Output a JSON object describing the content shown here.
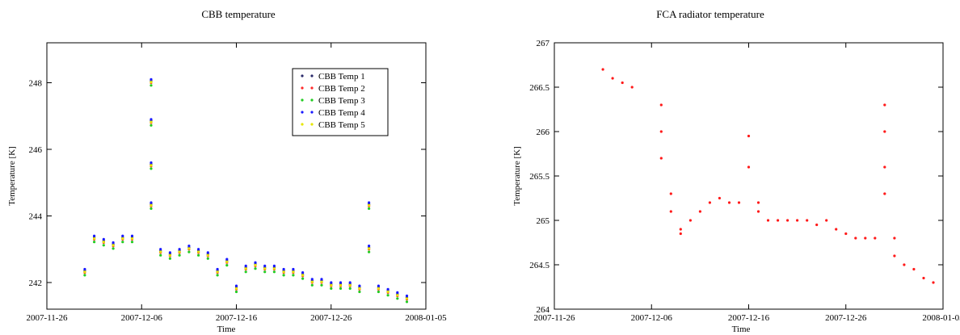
{
  "chart_data": [
    {
      "type": "scatter",
      "title": "CBB temperature",
      "xlabel": "Time",
      "ylabel": "Temperature [K]",
      "x_tick_labels": [
        "2007-11-26",
        "2007-12-06",
        "2007-12-16",
        "2007-12-26",
        "2008-01-05"
      ],
      "y_tick_labels": [
        "242",
        "244",
        "246",
        "248"
      ],
      "xlim": [
        "2007-11-26",
        "2008-01-05"
      ],
      "ylim": [
        241.2,
        249.2
      ],
      "legend_position": "top-right",
      "series": [
        {
          "name": "CBB Temp 1",
          "color": "#2b2b6b",
          "y_offset": 0.05
        },
        {
          "name": "CBB Temp 2",
          "color": "#ff2a2a",
          "y_offset": 0.0
        },
        {
          "name": "CBB Temp 3",
          "color": "#22cc22",
          "y_offset": -0.08
        },
        {
          "name": "CBB Temp 4",
          "color": "#1a1aff",
          "y_offset": 0.1
        },
        {
          "name": "CBB Temp 5",
          "color": "#e6e600",
          "y_offset": 0.02
        }
      ],
      "base_points": [
        [
          "2007-11-30",
          242.3
        ],
        [
          "2007-12-01",
          243.3
        ],
        [
          "2007-12-02",
          243.2
        ],
        [
          "2007-12-03",
          243.1
        ],
        [
          "2007-12-04",
          243.3
        ],
        [
          "2007-12-05",
          243.3
        ],
        [
          "2007-12-07",
          248.0
        ],
        [
          "2007-12-07",
          246.8
        ],
        [
          "2007-12-07",
          245.5
        ],
        [
          "2007-12-07",
          244.3
        ],
        [
          "2007-12-08",
          242.9
        ],
        [
          "2007-12-09",
          242.8
        ],
        [
          "2007-12-10",
          242.9
        ],
        [
          "2007-12-11",
          243.0
        ],
        [
          "2007-12-12",
          242.9
        ],
        [
          "2007-12-13",
          242.8
        ],
        [
          "2007-12-14",
          242.3
        ],
        [
          "2007-12-15",
          242.6
        ],
        [
          "2007-12-16",
          241.8
        ],
        [
          "2007-12-17",
          242.4
        ],
        [
          "2007-12-18",
          242.5
        ],
        [
          "2007-12-19",
          242.4
        ],
        [
          "2007-12-20",
          242.4
        ],
        [
          "2007-12-21",
          242.3
        ],
        [
          "2007-12-22",
          242.3
        ],
        [
          "2007-12-23",
          242.2
        ],
        [
          "2007-12-24",
          242.0
        ],
        [
          "2007-12-25",
          242.0
        ],
        [
          "2007-12-26",
          241.9
        ],
        [
          "2007-12-27",
          241.9
        ],
        [
          "2007-12-28",
          241.9
        ],
        [
          "2007-12-29",
          241.8
        ],
        [
          "2007-12-30",
          244.3
        ],
        [
          "2007-12-30",
          243.0
        ],
        [
          "2007-12-31",
          241.8
        ],
        [
          "2008-01-01",
          241.7
        ],
        [
          "2008-01-02",
          241.6
        ],
        [
          "2008-01-03",
          241.5
        ]
      ]
    },
    {
      "type": "scatter",
      "title": "FCA radiator temperature",
      "xlabel": "Time",
      "ylabel": "Temperature [K]",
      "x_tick_labels": [
        "2007-11-26",
        "2007-12-06",
        "2007-12-16",
        "2007-12-26",
        "2008-01-05"
      ],
      "y_tick_labels": [
        "264",
        "264.5",
        "265",
        "265.5",
        "266",
        "266.5",
        "267"
      ],
      "xlim": [
        "2007-11-26",
        "2008-01-05"
      ],
      "ylim": [
        264,
        267
      ],
      "color": "#ff1a1a",
      "points": [
        [
          "2007-12-01",
          266.7
        ],
        [
          "2007-12-02",
          266.6
        ],
        [
          "2007-12-03",
          266.55
        ],
        [
          "2007-12-04",
          266.5
        ],
        [
          "2007-12-07",
          266.3
        ],
        [
          "2007-12-07",
          266.0
        ],
        [
          "2007-12-07",
          265.7
        ],
        [
          "2007-12-08",
          265.3
        ],
        [
          "2007-12-08",
          265.1
        ],
        [
          "2007-12-09",
          264.9
        ],
        [
          "2007-12-09",
          264.85
        ],
        [
          "2007-12-10",
          265.0
        ],
        [
          "2007-12-11",
          265.1
        ],
        [
          "2007-12-12",
          265.2
        ],
        [
          "2007-12-13",
          265.25
        ],
        [
          "2007-12-14",
          265.2
        ],
        [
          "2007-12-15",
          265.2
        ],
        [
          "2007-12-16",
          265.95
        ],
        [
          "2007-12-16",
          265.6
        ],
        [
          "2007-12-17",
          265.2
        ],
        [
          "2007-12-17",
          265.1
        ],
        [
          "2007-12-18",
          265.0
        ],
        [
          "2007-12-19",
          265.0
        ],
        [
          "2007-12-20",
          265.0
        ],
        [
          "2007-12-21",
          265.0
        ],
        [
          "2007-12-22",
          265.0
        ],
        [
          "2007-12-23",
          264.95
        ],
        [
          "2007-12-24",
          265.0
        ],
        [
          "2007-12-25",
          264.9
        ],
        [
          "2007-12-26",
          264.85
        ],
        [
          "2007-12-27",
          264.8
        ],
        [
          "2007-12-28",
          264.8
        ],
        [
          "2007-12-29",
          264.8
        ],
        [
          "2007-12-30",
          266.3
        ],
        [
          "2007-12-30",
          266.0
        ],
        [
          "2007-12-30",
          265.6
        ],
        [
          "2007-12-30",
          265.3
        ],
        [
          "2007-12-31",
          264.8
        ],
        [
          "2007-12-31",
          264.6
        ],
        [
          "2008-01-01",
          264.5
        ],
        [
          "2008-01-02",
          264.45
        ],
        [
          "2008-01-03",
          264.35
        ],
        [
          "2008-01-04",
          264.3
        ]
      ]
    }
  ]
}
